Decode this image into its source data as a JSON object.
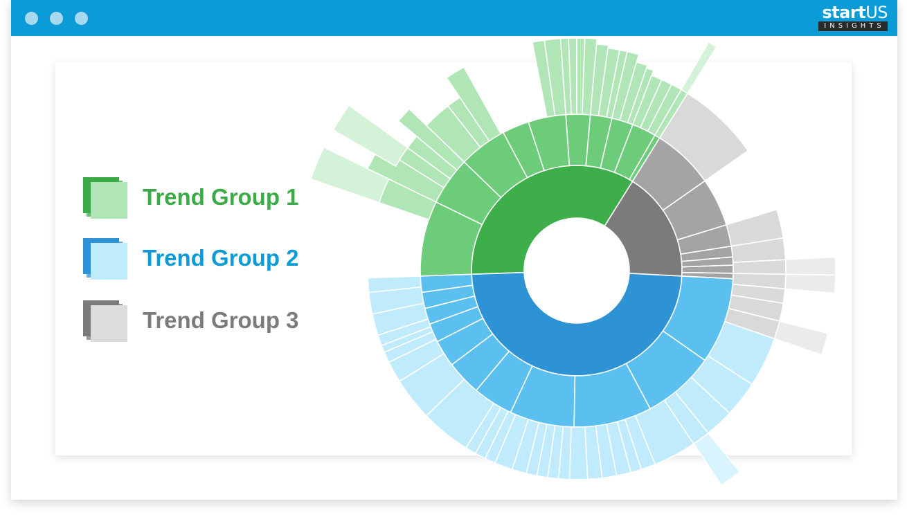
{
  "window": {
    "controls": [
      "close",
      "minimize",
      "maximize"
    ],
    "logo": {
      "word_start": "start",
      "word_us": "US",
      "tagline": "INSIGHTS"
    }
  },
  "legend": [
    {
      "label": "Trend Group 1",
      "text_color": "#3bab47",
      "swatch_dark": "#3bab47",
      "swatch_light": "#b0e5b5"
    },
    {
      "label": "Trend Group 2",
      "text_color": "#0b9cd8",
      "swatch_dark": "#2e93d5",
      "swatch_light": "#bfebfd"
    },
    {
      "label": "Trend Group 3",
      "text_color": "#7b7b7b",
      "swatch_dark": "#7b7b7b",
      "swatch_light": "#dcdcdc"
    }
  ],
  "colors": {
    "group1": [
      "#3dae4a",
      "#6dcc7a",
      "#b0e5b5",
      "#d4f2d7"
    ],
    "group2": [
      "#2e93d5",
      "#5bc0ef",
      "#bfebfd",
      "#d9f4fe"
    ],
    "group3": [
      "#7b7b7b",
      "#a4a4a4",
      "#d9d9d9",
      "#ebebeb"
    ]
  },
  "chart_data": {
    "type": "sunburst",
    "title": "",
    "groups": [
      {
        "name": "Trend Group 1",
        "color_key": "group1",
        "angle_deg": [
          -92,
          32
        ],
        "ring2": [
          {
            "angle_deg": [
              -92,
              -64
            ],
            "extent": 1,
            "ring3": [
              {
                "angle_deg": [
                  -71,
                  -64
                ],
                "extent": 1.45,
                "ring4": [
                  {
                    "angle_deg": [
                      -71,
                      -64
                    ],
                    "extent": 1.45
                  }
                ]
              },
              {
                "angle_deg": [
                  -64,
                  -54
                ],
                "extent": 1.45,
                "ring4": [
                  {
                    "angle_deg": [
                      -60,
                      -54
                    ],
                    "extent": 1.45
                  }
                ]
              }
            ]
          },
          {
            "angle_deg": [
              -64,
              -46
            ],
            "extent": 1,
            "ring3": [
              {
                "angle_deg": [
                  -58,
                  -54
                ],
                "extent": 1
              },
              {
                "angle_deg": [
                  -54,
                  -50
                ],
                "extent": 1
              },
              {
                "angle_deg": [
                  -50,
                  -46
                ],
                "extent": 1.45
              }
            ]
          },
          {
            "angle_deg": [
              -46,
              -28
            ],
            "extent": 1,
            "ring3": [
              {
                "angle_deg": [
                  -46,
                  -38
                ],
                "extent": 1
              },
              {
                "angle_deg": [
                  -38,
                  -34
                ],
                "extent": 1
              },
              {
                "angle_deg": [
                  -34,
                  -29
                ],
                "extent": 1.45
              }
            ]
          },
          {
            "angle_deg": [
              -28,
              -18
            ],
            "extent": 1
          },
          {
            "angle_deg": [
              -18,
              -4
            ],
            "extent": 1,
            "ring3": [
              {
                "angle_deg": [
                  -11,
                  -8
                ],
                "extent": 1.45
              },
              {
                "angle_deg": [
                  -8,
                  -4
                ],
                "extent": 1.45
              }
            ]
          },
          {
            "angle_deg": [
              -4,
              5
            ],
            "extent": 1,
            "ring3": [
              {
                "angle_deg": [
                  -4,
                  -2
                ],
                "extent": 1.45
              },
              {
                "angle_deg": [
                  -2,
                  0
                ],
                "extent": 1.45
              },
              {
                "angle_deg": [
                  0,
                  2
                ],
                "extent": 1.45
              },
              {
                "angle_deg": [
                  2,
                  5
                ],
                "extent": 1.45
              }
            ]
          },
          {
            "angle_deg": [
              5,
              13
            ],
            "extent": 1,
            "ring3": [
              {
                "angle_deg": [
                  5,
                  8
                ],
                "extent": 1.35
              },
              {
                "angle_deg": [
                  8,
                  11
                ],
                "extent": 1.3
              },
              {
                "angle_deg": [
                  11,
                  13
                ],
                "extent": 1.3
              }
            ]
          },
          {
            "angle_deg": [
              13,
              21
            ],
            "extent": 1,
            "ring3": [
              {
                "angle_deg": [
                  13,
                  16
                ],
                "extent": 1.3
              },
              {
                "angle_deg": [
                  16,
                  19
                ],
                "extent": 1.15
              },
              {
                "angle_deg": [
                  19,
                  21
                ],
                "extent": 1.1
              }
            ]
          },
          {
            "angle_deg": [
              21,
              30
            ],
            "extent": 1,
            "ring3": [
              {
                "angle_deg": [
                  21,
                  24
                ],
                "extent": 1
              },
              {
                "angle_deg": [
                  24,
                  27
                ],
                "extent": 1
              },
              {
                "angle_deg": [
                  27,
                  30
                ],
                "extent": 1
              }
            ]
          },
          {
            "angle_deg": [
              30,
              32
            ],
            "extent": 1,
            "ring3": [
              {
                "angle_deg": [
                  30,
                  32
                ],
                "extent": 1,
                "ring4": [
                  {
                    "angle_deg": [
                      30,
                      32
                    ],
                    "extent": 1.1
                  }
                ]
              }
            ]
          }
        ]
      },
      {
        "name": "Trend Group 3",
        "color_key": "group3",
        "angle_deg": [
          32,
          93
        ],
        "ring2": [
          {
            "angle_deg": [
              32,
              55
            ],
            "extent": 1,
            "ring3": [
              {
                "angle_deg": [
                  32,
                  55
                ],
                "extent": 1
              }
            ]
          },
          {
            "angle_deg": [
              55,
              73
            ],
            "extent": 1
          },
          {
            "angle_deg": [
              73,
              81
            ],
            "extent": 1,
            "ring3": [
              {
                "angle_deg": [
                  73,
                  81
                ],
                "extent": 1
              },
              {
                "angle_deg": [
                  81,
                  87
                ],
                "extent": 1
              }
            ]
          },
          {
            "angle_deg": [
              81,
              85
            ],
            "extent": 1,
            "ring3": [
              {
                "angle_deg": [
                  87,
                  91
                ],
                "extent": 1,
                "ring4": [
                  {
                    "angle_deg": [
                      87,
                      91
                    ],
                    "extent": 1
                  }
                ]
              }
            ]
          },
          {
            "angle_deg": [
              85,
              88
            ],
            "extent": 1,
            "ring3": [
              {
                "angle_deg": [
                  91,
                  95
                ],
                "extent": 1,
                "ring4": [
                  {
                    "angle_deg": [
                      91,
                      95
                    ],
                    "extent": 1
                  }
                ]
              }
            ]
          },
          {
            "angle_deg": [
              88,
              91
            ],
            "extent": 1,
            "ring3": [
              {
                "angle_deg": [
                  95,
                  99
                ],
                "extent": 1
              },
              {
                "angle_deg": [
                  99,
                  104
                ],
                "extent": 1
              }
            ]
          },
          {
            "angle_deg": [
              91,
              93
            ],
            "extent": 1,
            "ring3": [
              {
                "angle_deg": [
                  104,
                  109
                ],
                "extent": 1,
                "ring4": [
                  {
                    "angle_deg": [
                      104,
                      109
                    ],
                    "extent": 1
                  }
                ]
              }
            ]
          }
        ]
      },
      {
        "name": "Trend Group 2",
        "color_key": "group2",
        "angle_deg": [
          93,
          268
        ],
        "ring2": [
          {
            "angle_deg": [
              93,
              125
            ],
            "extent": 1,
            "ring3": [
              {
                "angle_deg": [
                  109,
                  123
                ],
                "extent": 1
              },
              {
                "angle_deg": [
                  123,
                  133
                ],
                "extent": 1
              }
            ]
          },
          {
            "angle_deg": [
              125,
              152
            ],
            "extent": 1,
            "ring3": [
              {
                "angle_deg": [
                  133,
                  141
                ],
                "extent": 1
              },
              {
                "angle_deg": [
                  141,
                  146
                ],
                "extent": 1,
                "ring4": [
                  {
                    "angle_deg": [
                      141,
                      146
                    ],
                    "extent": 1
                  }
                ]
              },
              {
                "angle_deg": [
                  146,
                  158
                ],
                "extent": 1
              }
            ]
          },
          {
            "angle_deg": [
              152,
              181
            ],
            "extent": 1,
            "ring3": [
              {
                "angle_deg": [
                  158,
                  162
                ],
                "extent": 1
              },
              {
                "angle_deg": [
                  162,
                  165
                ],
                "extent": 1
              },
              {
                "angle_deg": [
                  165,
                  169
                ],
                "extent": 1
              },
              {
                "angle_deg": [
                  169,
                  173
                ],
                "extent": 1
              },
              {
                "angle_deg": [
                  173,
                  177
                ],
                "extent": 1
              },
              {
                "angle_deg": [
                  177,
                  182
                ],
                "extent": 1
              }
            ]
          },
          {
            "angle_deg": [
              181,
              205
            ],
            "extent": 1,
            "ring3": [
              {
                "angle_deg": [
                  182,
                  185
                ],
                "extent": 1
              },
              {
                "angle_deg": [
                  185,
                  188
                ],
                "extent": 1
              },
              {
                "angle_deg": [
                  188,
                  191
                ],
                "extent": 1
              },
              {
                "angle_deg": [
                  191,
                  194
                ],
                "extent": 1
              },
              {
                "angle_deg": [
                  194,
                  198
                ],
                "extent": 1
              },
              {
                "angle_deg": [
                  198,
                  203
                ],
                "extent": 1
              },
              {
                "angle_deg": [
                  203,
                  206
                ],
                "extent": 1
              },
              {
                "angle_deg": [
                  206,
                  209
                ],
                "extent": 1
              },
              {
                "angle_deg": [
                  209,
                  212
                ],
                "extent": 1
              }
            ]
          },
          {
            "angle_deg": [
              205,
              220
            ],
            "extent": 1,
            "ring3": [
              {
                "angle_deg": [
                  212,
                  226
                ],
                "extent": 1
              }
            ]
          },
          {
            "angle_deg": [
              220,
              233
            ],
            "extent": 1,
            "ring3": [
              {
                "angle_deg": [
                  226,
                  238
                ],
                "extent": 1
              },
              {
                "angle_deg": [
                  238,
                  244
                ],
                "extent": 1
              }
            ]
          },
          {
            "angle_deg": [
              233,
              243
            ],
            "extent": 1,
            "ring3": [
              {
                "angle_deg": [
                  244,
                  247
                ],
                "extent": 1
              },
              {
                "angle_deg": [
                  247,
                  249
                ],
                "extent": 1
              },
              {
                "angle_deg": [
                  249,
                  252
                ],
                "extent": 1
              }
            ]
          },
          {
            "angle_deg": [
              243,
              250
            ],
            "extent": 1,
            "ring3": [
              {
                "angle_deg": [
                  252,
                  258
                ],
                "extent": 1
              }
            ]
          },
          {
            "angle_deg": [
              250,
              256
            ],
            "extent": 1,
            "ring3": [
              {
                "angle_deg": [
                  258,
                  264
                ],
                "extent": 1
              },
              {
                "angle_deg": [
                  264,
                  268
                ],
                "extent": 1
              }
            ]
          },
          {
            "angle_deg": [
              256,
              262
            ],
            "extent": 1
          },
          {
            "angle_deg": [
              262,
              268
            ],
            "extent": 1
          }
        ]
      }
    ]
  }
}
